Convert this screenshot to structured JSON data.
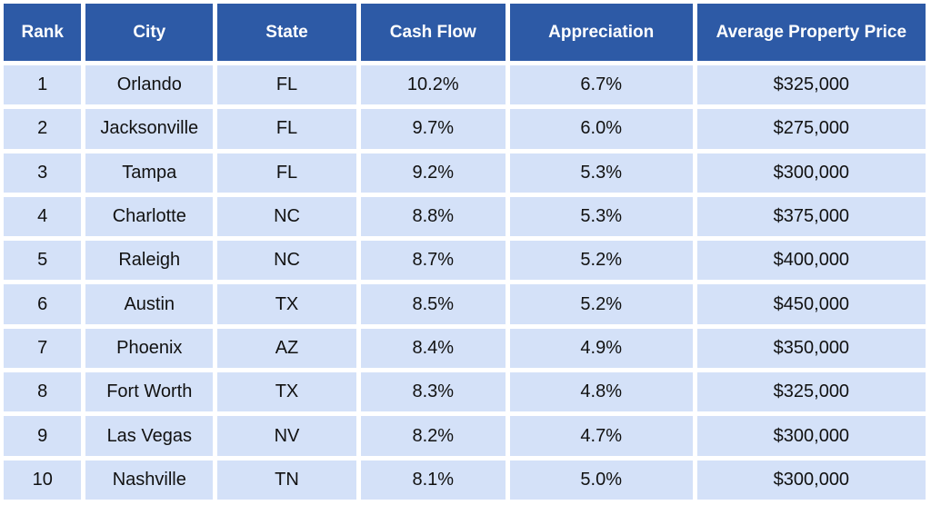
{
  "chart_data": {
    "type": "table",
    "columns": [
      "Rank",
      "City",
      "State",
      "Cash Flow",
      "Appreciation",
      "Average Property Price"
    ],
    "rows": [
      [
        "1",
        "Orlando",
        "FL",
        "10.2%",
        "6.7%",
        "$325,000"
      ],
      [
        "2",
        "Jacksonville",
        "FL",
        "9.7%",
        "6.0%",
        "$275,000"
      ],
      [
        "3",
        "Tampa",
        "FL",
        "9.2%",
        "5.3%",
        "$300,000"
      ],
      [
        "4",
        "Charlotte",
        "NC",
        "8.8%",
        "5.3%",
        "$375,000"
      ],
      [
        "5",
        "Raleigh",
        "NC",
        "8.7%",
        "5.2%",
        "$400,000"
      ],
      [
        "6",
        "Austin",
        "TX",
        "8.5%",
        "5.2%",
        "$450,000"
      ],
      [
        "7",
        "Phoenix",
        "AZ",
        "8.4%",
        "4.9%",
        "$350,000"
      ],
      [
        "8",
        "Fort Worth",
        "TX",
        "8.3%",
        "4.8%",
        "$325,000"
      ],
      [
        "9",
        "Las Vegas",
        "NV",
        "8.2%",
        "4.7%",
        "$300,000"
      ],
      [
        "10",
        "Nashville",
        "TN",
        "8.1%",
        "5.0%",
        "$300,000"
      ]
    ]
  },
  "colors": {
    "header_bg": "#2d5aa6",
    "header_text": "#ffffff",
    "cell_bg": "#d4e1f8",
    "cell_text": "#111111"
  }
}
